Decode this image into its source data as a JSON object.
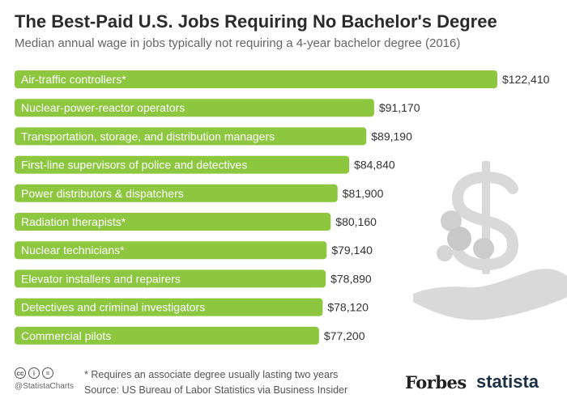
{
  "header": {
    "title": "The Best-Paid U.S. Jobs Requiring No Bachelor's Degree",
    "subtitle": "Median annual wage in jobs typically not requiring a 4-year bachelor degree (2016)"
  },
  "chart_data": {
    "type": "bar",
    "orientation": "horizontal",
    "title": "The Best-Paid U.S. Jobs Requiring No Bachelor's Degree",
    "subtitle": "Median annual wage in jobs typically not requiring a 4-year bachelor degree (2016)",
    "categories": [
      "Air-traffic controllers*",
      "Nuclear-power-reactor operators",
      "Transportation, storage, and distribution managers",
      "First-line supervisors of police and detectives",
      "Power distributors & dispatchers",
      "Radiation therapists*",
      "Nuclear technicians*",
      "Elevator installers and repairers",
      "Detectives and criminal investigators",
      "Commercial pilots"
    ],
    "values": [
      122410,
      91170,
      89190,
      84840,
      81900,
      80160,
      79140,
      78890,
      78120,
      77200
    ],
    "value_labels": [
      "$122,410",
      "$91,170",
      "$89,190",
      "$84,840",
      "$81,900",
      "$80,160",
      "$79,140",
      "$78,890",
      "$78,120",
      "$77,200"
    ],
    "xlim": [
      0,
      122410
    ],
    "grid": false,
    "bar_color": "#8dc63f",
    "label_color": "#ffffff"
  },
  "footer": {
    "footnote": "* Requires an associate degree usually lasting two years",
    "source": "Source: US Bureau of Labor Statistics via Business Insider",
    "handle": "@StatistaCharts",
    "cc_icons": [
      "cc",
      "i",
      "="
    ],
    "forbes": "Forbes",
    "statista": "statista"
  },
  "colors": {
    "accent": "#8dc63f",
    "illustration": "#d9d9d9",
    "brand": "#1b2f45"
  }
}
